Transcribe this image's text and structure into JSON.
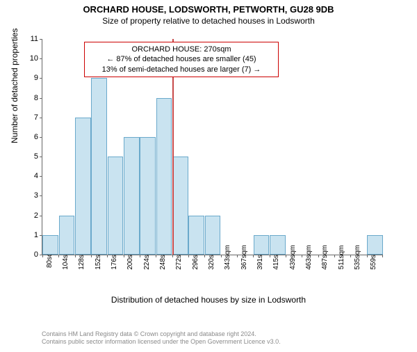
{
  "title": "ORCHARD HOUSE, LODSWORTH, PETWORTH, GU28 9DB",
  "subtitle": "Size of property relative to detached houses in Lodsworth",
  "ylabel": "Number of detached properties",
  "xlabel": "Distribution of detached houses by size in Lodsworth",
  "chart": {
    "type": "histogram",
    "ylim": [
      0,
      11
    ],
    "ytick_step": 1,
    "background_color": "#ffffff",
    "bar_fill": "#c9e3f0",
    "bar_border": "#6aa9cb",
    "grid": false,
    "x_categories": [
      "80sqm",
      "104sqm",
      "128sqm",
      "152sqm",
      "176sqm",
      "200sqm",
      "224sqm",
      "248sqm",
      "272sqm",
      "296sqm",
      "320sqm",
      "343sqm",
      "367sqm",
      "391sqm",
      "415sqm",
      "439sqm",
      "463sqm",
      "487sqm",
      "511sqm",
      "535sqm",
      "559sqm"
    ],
    "values": [
      1,
      2,
      7,
      9,
      5,
      6,
      6,
      8,
      5,
      2,
      2,
      0,
      0,
      1,
      1,
      0,
      0,
      0,
      0,
      0,
      1
    ],
    "highlight": {
      "index": 8,
      "color": "#c74a4a"
    }
  },
  "callout": {
    "line1": "ORCHARD HOUSE: 270sqm",
    "line2": "← 87% of detached houses are smaller (45)",
    "line3": "13% of semi-detached houses are larger (7) →",
    "border_color": "#cc0000"
  },
  "footer": {
    "line1": "Contains HM Land Registry data © Crown copyright and database right 2024.",
    "line2": "Contains public sector information licensed under the Open Government Licence v3.0."
  }
}
